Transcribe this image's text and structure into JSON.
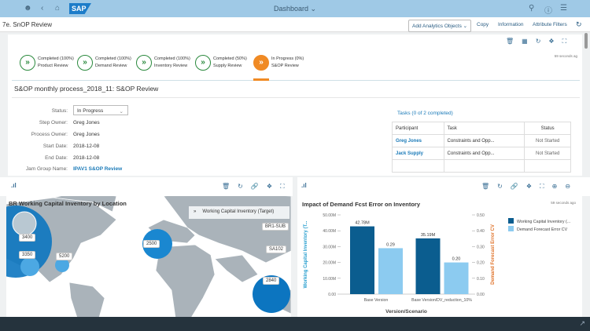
{
  "header": {
    "title": "Dashboard",
    "logo": "SAP",
    "icons": [
      "user-icon",
      "back-icon",
      "home-icon",
      "search-icon",
      "help-icon",
      "notifications-icon"
    ]
  },
  "subheader": {
    "title": "7e. SnOP Review",
    "add_analytics": "Add Analytics Objects",
    "copy": "Copy",
    "information": "Information",
    "attribute_filters": "Attribute Filters"
  },
  "process": {
    "timestamp": "59 seconds ag",
    "steps": [
      {
        "status": "Completed (100%)",
        "name": "Product Review",
        "state": "done"
      },
      {
        "status": "Completed (100%)",
        "name": "Demand Review",
        "state": "done"
      },
      {
        "status": "Completed (100%)",
        "name": "Inventory Review",
        "state": "done"
      },
      {
        "status": "Completed (50%)",
        "name": "Supply Review",
        "state": "done"
      },
      {
        "status": "In Progress (0%)",
        "name": "S&OP Review",
        "state": "active"
      }
    ]
  },
  "detail": {
    "title": "S&OP monthly process_2018_11: S&OP Review",
    "fields": [
      {
        "label": "Status:",
        "value": "In Progress"
      },
      {
        "label": "Step Owner:",
        "value": "Greg Jones"
      },
      {
        "label": "Process Owner:",
        "value": "Greg Jones"
      },
      {
        "label": "Start Date:",
        "value": "2018-12-08"
      },
      {
        "label": "End Date:",
        "value": "2018-12-08"
      },
      {
        "label": "Jam Group Name:",
        "value": "IPAV1 S&OP Review"
      }
    ],
    "tasks_title": "Tasks (0 of 2 completed)",
    "columns": [
      "Participant",
      "Task",
      "Status"
    ],
    "rows": [
      [
        "Greg Jones",
        "Constraints and Opp...",
        "Not Started"
      ],
      [
        "Jack Supply",
        "Constraints and Opp...",
        "Not Started"
      ]
    ]
  },
  "map": {
    "title": "BR Working Capital Inventory by Location",
    "legend": "Working Capital Inventory (Target)",
    "labels": [
      "3400",
      "3350",
      "5200",
      "2500",
      "BR1-SUB",
      "SA102",
      "2840"
    ]
  },
  "chart_data": {
    "type": "bar",
    "title": "Impact of Demand Fcst Error on Inventory",
    "timestamp": "59 seconds ago",
    "categories": [
      "Base Version",
      "Base Version/DV_reduction_10%"
    ],
    "xlabel": "Version/Scenario",
    "ylabel": "Working Capital Inventory (T...",
    "y2label": "Demand Forecast Error CV",
    "ylim": [
      0,
      50000000
    ],
    "y2lim": [
      0,
      0.5
    ],
    "yticks": [
      "0.00",
      "10.00M",
      "20.00M",
      "30.00M",
      "40.00M",
      "50.00M"
    ],
    "y2ticks": [
      "0.00",
      "0.10",
      "0.20",
      "0.30",
      "0.40",
      "0.50"
    ],
    "series": [
      {
        "name": "Working Capital Inventory (...",
        "axis": "left",
        "color": "#0b5d8f",
        "values": [
          42780000,
          35190000
        ],
        "labels": [
          "42.78M",
          "35.19M"
        ]
      },
      {
        "name": "Demand Forecast Error CV",
        "axis": "right",
        "color": "#8ccbf0",
        "values": [
          0.29,
          0.2
        ],
        "labels": [
          "0.29",
          "0.20"
        ]
      }
    ]
  }
}
